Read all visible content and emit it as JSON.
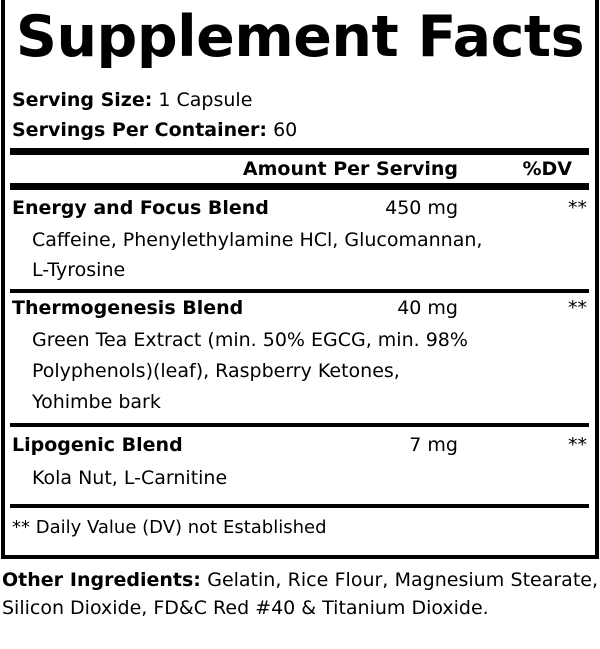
{
  "title": "Supplement Facts",
  "serving_size": {
    "label": "Serving Size:",
    "value": "1 Capsule"
  },
  "servings_per_container": {
    "label": "Servings Per Container:",
    "value": "60"
  },
  "header": {
    "amount": "Amount Per Serving",
    "dv": "%DV"
  },
  "blends": [
    {
      "name": "Energy and Focus Blend",
      "amount": "450 mg",
      "dv": "**",
      "lines": [
        "Caffeine, Phenylethylamine HCl, Glucomannan,",
        "L-Tyrosine"
      ]
    },
    {
      "name": "Thermogenesis Blend",
      "amount": "40 mg",
      "dv": "**",
      "lines": [
        "Green Tea Extract (min. 50% EGCG, min. 98%",
        "Polyphenols)(leaf), Raspberry Ketones,",
        "Yohimbe bark"
      ]
    },
    {
      "name": "Lipogenic Blend",
      "amount": "7 mg",
      "dv": "**",
      "lines": [
        "Kola Nut, L-Carnitine"
      ]
    }
  ],
  "footnote": "** Daily Value (DV) not Established",
  "other_ingredients": {
    "label": "Other Ingredients:",
    "value": "Gelatin, Rice Flour, Magnesium Stearate, Silicon Dioxide, FD&C Red #40 & Titanium Dioxide."
  }
}
